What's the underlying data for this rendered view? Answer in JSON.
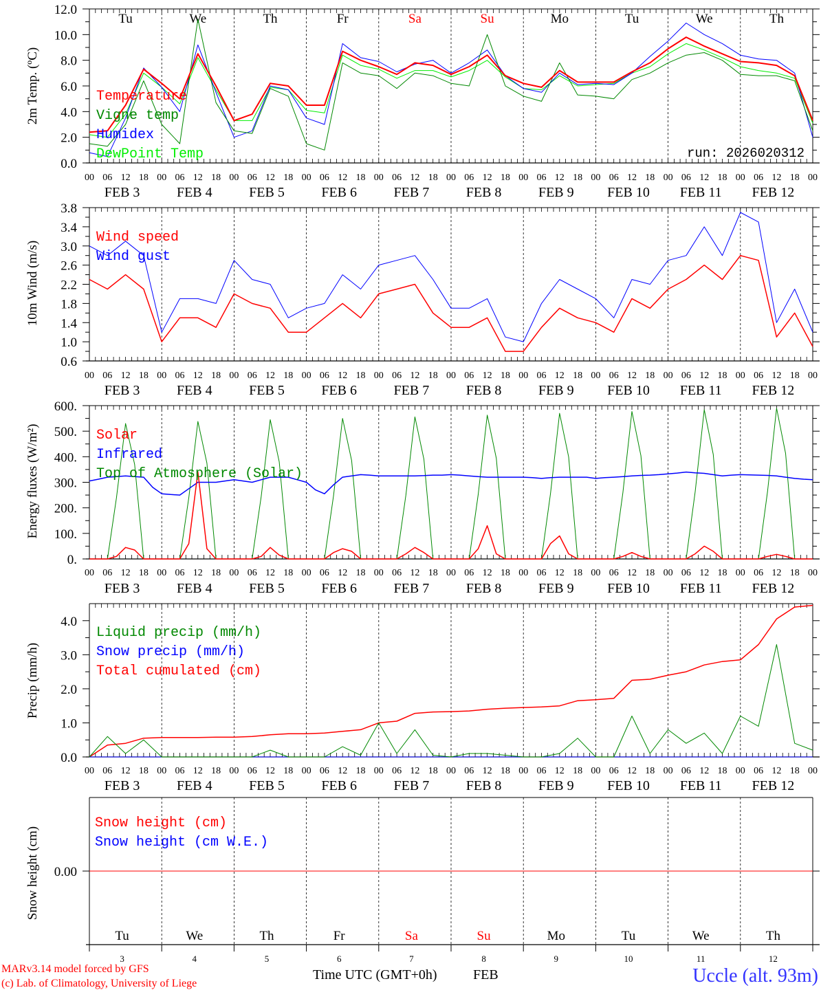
{
  "header": {
    "run_label": "run: 2026020312"
  },
  "days": {
    "weekday_labels": [
      "Tu",
      "We",
      "Th",
      "Fr",
      "Sa",
      "Su",
      "Mo",
      "Tu",
      "We",
      "Th"
    ],
    "weekend_flags": [
      false,
      false,
      false,
      false,
      true,
      true,
      false,
      false,
      false,
      false
    ],
    "date_labels": [
      "FEB  3",
      "FEB  4",
      "FEB  5",
      "FEB  6",
      "FEB  7",
      "FEB  8",
      "FEB  9",
      "FEB 10",
      "FEB 11",
      "FEB 12"
    ],
    "day_numbers": [
      "3",
      "4",
      "5",
      "6",
      "7",
      "8",
      "9",
      "10",
      "11",
      "12"
    ],
    "hour_ticks": [
      "00",
      "06",
      "12",
      "18"
    ],
    "final_hour_tick": "00"
  },
  "footer": {
    "model": "MARv3.14 model forced by GFS",
    "copyright": "(c) Lab. of Climatology, University of Liege",
    "xlabel": "Time UTC (GMT+0h)",
    "month": "FEB",
    "station": "Uccle (alt. 93m)"
  },
  "colors": {
    "red": "#ff0000",
    "green": "#008800",
    "lightgreen": "#00ee00",
    "blue": "#0000ff",
    "weekend": "#ff0000"
  },
  "chart_data": [
    {
      "type": "line",
      "title": "",
      "ylabel": "2m Temp. (ºC)",
      "xlabel": "",
      "ylim": [
        0,
        12
      ],
      "yticks": [
        "0.0",
        "2.0",
        "4.0",
        "6.0",
        "8.0",
        "10.0",
        "12.0"
      ],
      "yticks_values": [
        0,
        2,
        4,
        6,
        8,
        10,
        12
      ],
      "x_step_hours": 6,
      "series": [
        {
          "name": "Temperature",
          "color": "#ff0000",
          "width": 2,
          "values": [
            2.4,
            2.5,
            4.5,
            7.3,
            6.2,
            5.0,
            8.5,
            6.0,
            3.3,
            3.8,
            6.2,
            6.0,
            4.5,
            4.5,
            8.7,
            8.0,
            7.5,
            6.9,
            7.8,
            7.6,
            6.9,
            7.5,
            8.4,
            6.8,
            6.2,
            5.9,
            7.2,
            6.3,
            6.3,
            6.3,
            7.1,
            7.8,
            8.9,
            9.8,
            9.1,
            8.5,
            7.9,
            7.8,
            7.6,
            6.8,
            3.3
          ]
        },
        {
          "name": "Vigne temp",
          "color": "#008800",
          "width": 1,
          "values": [
            1.5,
            1.3,
            3.0,
            6.4,
            3.0,
            1.5,
            11.2,
            4.7,
            2.5,
            2.3,
            5.8,
            5.2,
            1.5,
            1.0,
            7.8,
            7.0,
            6.8,
            5.8,
            7.0,
            6.8,
            6.2,
            6.0,
            10.0,
            6.0,
            5.2,
            4.8,
            7.8,
            5.3,
            5.2,
            5.0,
            6.5,
            7.0,
            7.8,
            8.4,
            8.6,
            8.0,
            6.9,
            6.8,
            6.8,
            6.4,
            2.5
          ]
        },
        {
          "name": "Humidex",
          "color": "#0000ff",
          "width": 1,
          "values": [
            0.8,
            0.5,
            3.5,
            7.4,
            5.9,
            4.0,
            9.2,
            5.5,
            2.0,
            2.5,
            6.0,
            5.7,
            3.5,
            3.0,
            9.3,
            8.2,
            7.9,
            7.1,
            7.7,
            8.0,
            7.0,
            7.8,
            8.8,
            6.8,
            5.8,
            5.5,
            7.0,
            6.1,
            6.2,
            6.1,
            7.0,
            8.3,
            9.5,
            10.9,
            10.0,
            9.3,
            8.4,
            8.1,
            8.0,
            7.0,
            2.0
          ]
        },
        {
          "name": "DewPoint Temp",
          "color": "#00ee00",
          "width": 1,
          "values": [
            2.2,
            2.0,
            3.8,
            7.0,
            5.9,
            4.6,
            8.2,
            5.7,
            3.3,
            3.3,
            5.9,
            5.7,
            4.1,
            3.9,
            8.4,
            7.6,
            7.3,
            6.6,
            7.2,
            7.2,
            6.7,
            7.2,
            8.0,
            6.7,
            5.8,
            5.7,
            6.8,
            6.0,
            6.1,
            6.2,
            7.0,
            7.5,
            8.5,
            9.3,
            8.8,
            8.2,
            7.5,
            7.2,
            7.0,
            6.6,
            3.1
          ]
        }
      ]
    },
    {
      "type": "line",
      "title": "",
      "ylabel": "10m Wind (m/s)",
      "xlabel": "",
      "ylim": [
        0.6,
        3.8
      ],
      "yticks": [
        "0.6",
        "1.0",
        "1.4",
        "1.8",
        "2.2",
        "2.6",
        "3.0",
        "3.4",
        "3.8"
      ],
      "yticks_values": [
        0.6,
        1.0,
        1.4,
        1.8,
        2.2,
        2.6,
        3.0,
        3.4,
        3.8
      ],
      "x_step_hours": 6,
      "series": [
        {
          "name": "Wind speed",
          "color": "#ff0000",
          "width": 1.5,
          "values": [
            2.3,
            2.1,
            2.4,
            2.1,
            1.0,
            1.5,
            1.5,
            1.3,
            2.0,
            1.8,
            1.7,
            1.2,
            1.2,
            1.5,
            1.8,
            1.5,
            2.0,
            2.1,
            2.2,
            1.6,
            1.3,
            1.3,
            1.5,
            0.8,
            0.8,
            1.3,
            1.7,
            1.5,
            1.4,
            1.2,
            1.9,
            1.7,
            2.1,
            2.3,
            2.6,
            2.3,
            2.8,
            2.7,
            1.1,
            1.6,
            0.9
          ]
        },
        {
          "name": "Wind gust",
          "color": "#0000ff",
          "width": 1,
          "values": [
            3.0,
            2.8,
            3.1,
            2.8,
            1.2,
            1.9,
            1.9,
            1.8,
            2.7,
            2.3,
            2.2,
            1.5,
            1.7,
            1.8,
            2.4,
            2.1,
            2.6,
            2.7,
            2.8,
            2.3,
            1.7,
            1.7,
            1.9,
            1.1,
            1.0,
            1.8,
            2.3,
            2.1,
            1.9,
            1.5,
            2.3,
            2.2,
            2.7,
            2.8,
            3.4,
            2.8,
            3.7,
            3.5,
            1.4,
            2.1,
            1.2
          ]
        }
      ]
    },
    {
      "type": "line",
      "title": "",
      "ylabel": "Energy fluxes (W/m²)",
      "xlabel": "",
      "ylim": [
        0,
        600
      ],
      "yticks": [
        "0.",
        "100.",
        "200.",
        "300.",
        "400.",
        "500.",
        "600."
      ],
      "yticks_values": [
        0,
        100,
        200,
        300,
        400,
        500,
        600
      ],
      "x_step_hours": 3,
      "series": [
        {
          "name": "Solar",
          "color": "#ff0000",
          "width": 1.5,
          "values": [
            0,
            0,
            0,
            10,
            45,
            35,
            0,
            0,
            0,
            0,
            0,
            60,
            340,
            40,
            0,
            0,
            0,
            0,
            0,
            10,
            45,
            15,
            0,
            0,
            0,
            0,
            0,
            25,
            40,
            30,
            0,
            0,
            0,
            0,
            0,
            20,
            45,
            25,
            0,
            0,
            0,
            0,
            0,
            40,
            130,
            20,
            0,
            0,
            0,
            0,
            0,
            60,
            90,
            20,
            0,
            0,
            0,
            0,
            0,
            10,
            25,
            10,
            0,
            0,
            0,
            0,
            0,
            20,
            50,
            30,
            0,
            0,
            0,
            0,
            0,
            10,
            18,
            10,
            0,
            0,
            0
          ]
        },
        {
          "name": "Infrared",
          "color": "#0000ff",
          "width": 1.5,
          "values": [
            305,
            312,
            320,
            322,
            325,
            322,
            320,
            280,
            255,
            252,
            250,
            275,
            300,
            300,
            300,
            305,
            310,
            305,
            300,
            310,
            320,
            320,
            320,
            310,
            300,
            270,
            255,
            290,
            320,
            325,
            330,
            328,
            325,
            325,
            325,
            325,
            325,
            326,
            328,
            328,
            330,
            328,
            325,
            322,
            320,
            320,
            320,
            320,
            320,
            318,
            315,
            318,
            320,
            320,
            320,
            320,
            315,
            318,
            320,
            322,
            325,
            327,
            328,
            330,
            333,
            336,
            340,
            337,
            335,
            330,
            325,
            328,
            330,
            329,
            328,
            327,
            325,
            320,
            315,
            312,
            310
          ]
        },
        {
          "name": "Top of Atmosphere (Solar)",
          "color": "#008800",
          "width": 1,
          "values": [
            0,
            0,
            0,
            240,
            530,
            370,
            0,
            0,
            0,
            0,
            0,
            240,
            538,
            375,
            0,
            0,
            0,
            0,
            0,
            245,
            545,
            380,
            0,
            0,
            0,
            0,
            0,
            248,
            550,
            385,
            0,
            0,
            0,
            0,
            0,
            250,
            556,
            390,
            0,
            0,
            0,
            0,
            0,
            253,
            563,
            394,
            0,
            0,
            0,
            0,
            0,
            256,
            570,
            399,
            0,
            0,
            0,
            0,
            0,
            260,
            577,
            404,
            0,
            0,
            0,
            0,
            0,
            263,
            584,
            409,
            0,
            0,
            0,
            0,
            0,
            265,
            590,
            413,
            0,
            0,
            0
          ]
        }
      ]
    },
    {
      "type": "line",
      "title": "",
      "ylabel": "Precip (mm/h)",
      "xlabel": "",
      "ylim": [
        0,
        4.5
      ],
      "yticks": [
        "0.0",
        "1.0",
        "2.0",
        "3.0",
        "4.0"
      ],
      "yticks_values": [
        0,
        1,
        2,
        3,
        4
      ],
      "x_step_hours": 6,
      "series": [
        {
          "name": "Liquid precip (mm/h)",
          "color": "#008800",
          "width": 1,
          "values": [
            0,
            0.6,
            0.1,
            0.5,
            0,
            0,
            0,
            0,
            0,
            0,
            0.2,
            0,
            0,
            0,
            0.3,
            0.05,
            1.0,
            0.1,
            0.8,
            0.05,
            0,
            0.1,
            0.1,
            0.05,
            0,
            0,
            0.1,
            0.55,
            0,
            0,
            1.2,
            0.1,
            0.8,
            0.4,
            0.7,
            0.1,
            1.2,
            0.9,
            3.3,
            0.4,
            0.2
          ]
        },
        {
          "name": "Snow precip (mm/h)",
          "color": "#0000ff",
          "width": 1,
          "values": [
            0,
            0,
            0,
            0,
            0,
            0,
            0,
            0,
            0,
            0,
            0,
            0,
            0,
            0,
            0,
            0,
            0,
            0,
            0,
            0,
            0,
            0,
            0,
            0,
            0,
            0,
            0,
            0,
            0,
            0,
            0,
            0,
            0,
            0,
            0,
            0,
            0,
            0,
            0,
            0,
            0
          ]
        },
        {
          "name": "Total cumulated (cm)",
          "color": "#ff0000",
          "width": 1.5,
          "values": [
            0,
            0.35,
            0.4,
            0.55,
            0.57,
            0.57,
            0.57,
            0.58,
            0.58,
            0.6,
            0.65,
            0.68,
            0.68,
            0.7,
            0.75,
            0.8,
            1.0,
            1.05,
            1.28,
            1.32,
            1.33,
            1.35,
            1.4,
            1.43,
            1.45,
            1.47,
            1.5,
            1.65,
            1.68,
            1.72,
            2.25,
            2.28,
            2.4,
            2.5,
            2.7,
            2.8,
            2.85,
            3.3,
            4.05,
            4.4,
            4.45
          ]
        }
      ]
    },
    {
      "type": "line",
      "title": "",
      "ylabel": "Snow height (cm)",
      "xlabel": "Time UTC (GMT+0h)",
      "ylim": [
        -1,
        1
      ],
      "yticks": [
        "0.00"
      ],
      "yticks_values": [
        0
      ],
      "x_step_hours": 240,
      "series": [
        {
          "name": "Snow height (cm)",
          "color": "#ff0000",
          "width": 1,
          "values": [
            0,
            0
          ]
        },
        {
          "name": "Snow height (cm W.E.)",
          "color": "#0000ff",
          "width": 1,
          "values": [
            0,
            0
          ]
        }
      ]
    }
  ]
}
